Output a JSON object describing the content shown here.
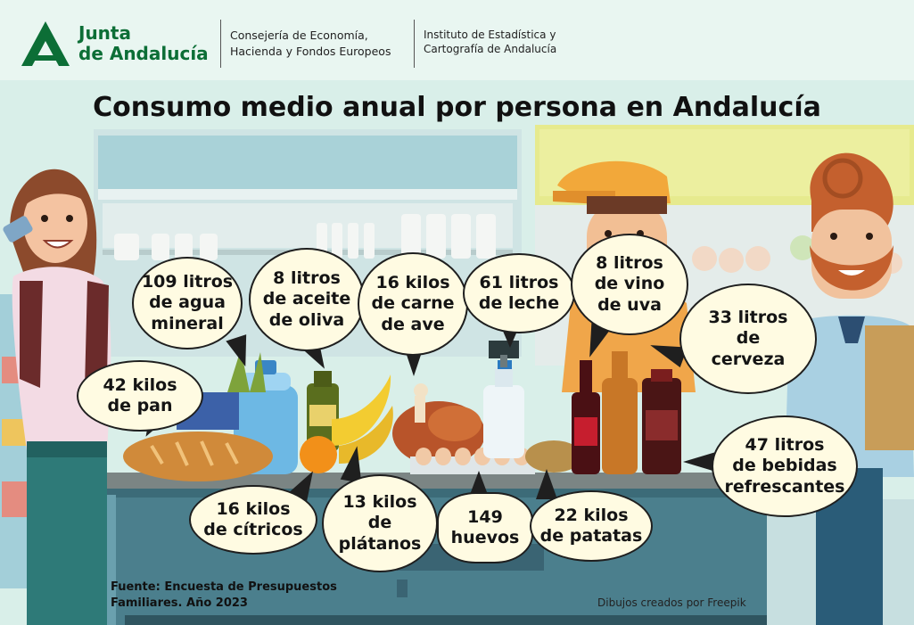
{
  "header": {
    "logo": {
      "line1": "Junta",
      "line2": "de Andalucía"
    },
    "department": {
      "line1": "Consejería de Economía,",
      "line2": "Hacienda y Fondos Europeos"
    },
    "institute": {
      "line1": "Instituto de Estadística y",
      "line2": "Cartografía de Andalucía"
    }
  },
  "title": "Consumo medio anual por persona en Andalucía",
  "items": [
    {
      "key": "agua",
      "text": "109 litros\nde agua\nmineral"
    },
    {
      "key": "aceite",
      "text": "8 litros\nde aceite\nde oliva"
    },
    {
      "key": "carne",
      "text": "16 kilos\nde carne\nde ave"
    },
    {
      "key": "leche",
      "text": "61 litros\nde leche"
    },
    {
      "key": "vino",
      "text": "8 litros\nde vino\nde uva"
    },
    {
      "key": "cerveza",
      "text": "33 litros\nde\ncerveza"
    },
    {
      "key": "pan",
      "text": "42 kilos\nde pan"
    },
    {
      "key": "refrescos",
      "text": "47 litros\nde bebidas\nrefrescantes"
    },
    {
      "key": "citricos",
      "text": "16 kilos\nde cítricos"
    },
    {
      "key": "platanos",
      "text": "13 kilos\nde\nplátanos"
    },
    {
      "key": "huevos",
      "text": "149\nhuevos"
    },
    {
      "key": "patatas",
      "text": "22 kilos\nde patatas"
    }
  ],
  "footer": {
    "source_line1": "Fuente: Encuesta de Presupuestos",
    "source_line2": "Familiares. Año 2023",
    "credit": "Dibujos creados por Freepik"
  },
  "colors": {
    "brand_green": "#0c6e36",
    "bubble_fill": "#fffbe2",
    "background": "#dff1ec"
  }
}
